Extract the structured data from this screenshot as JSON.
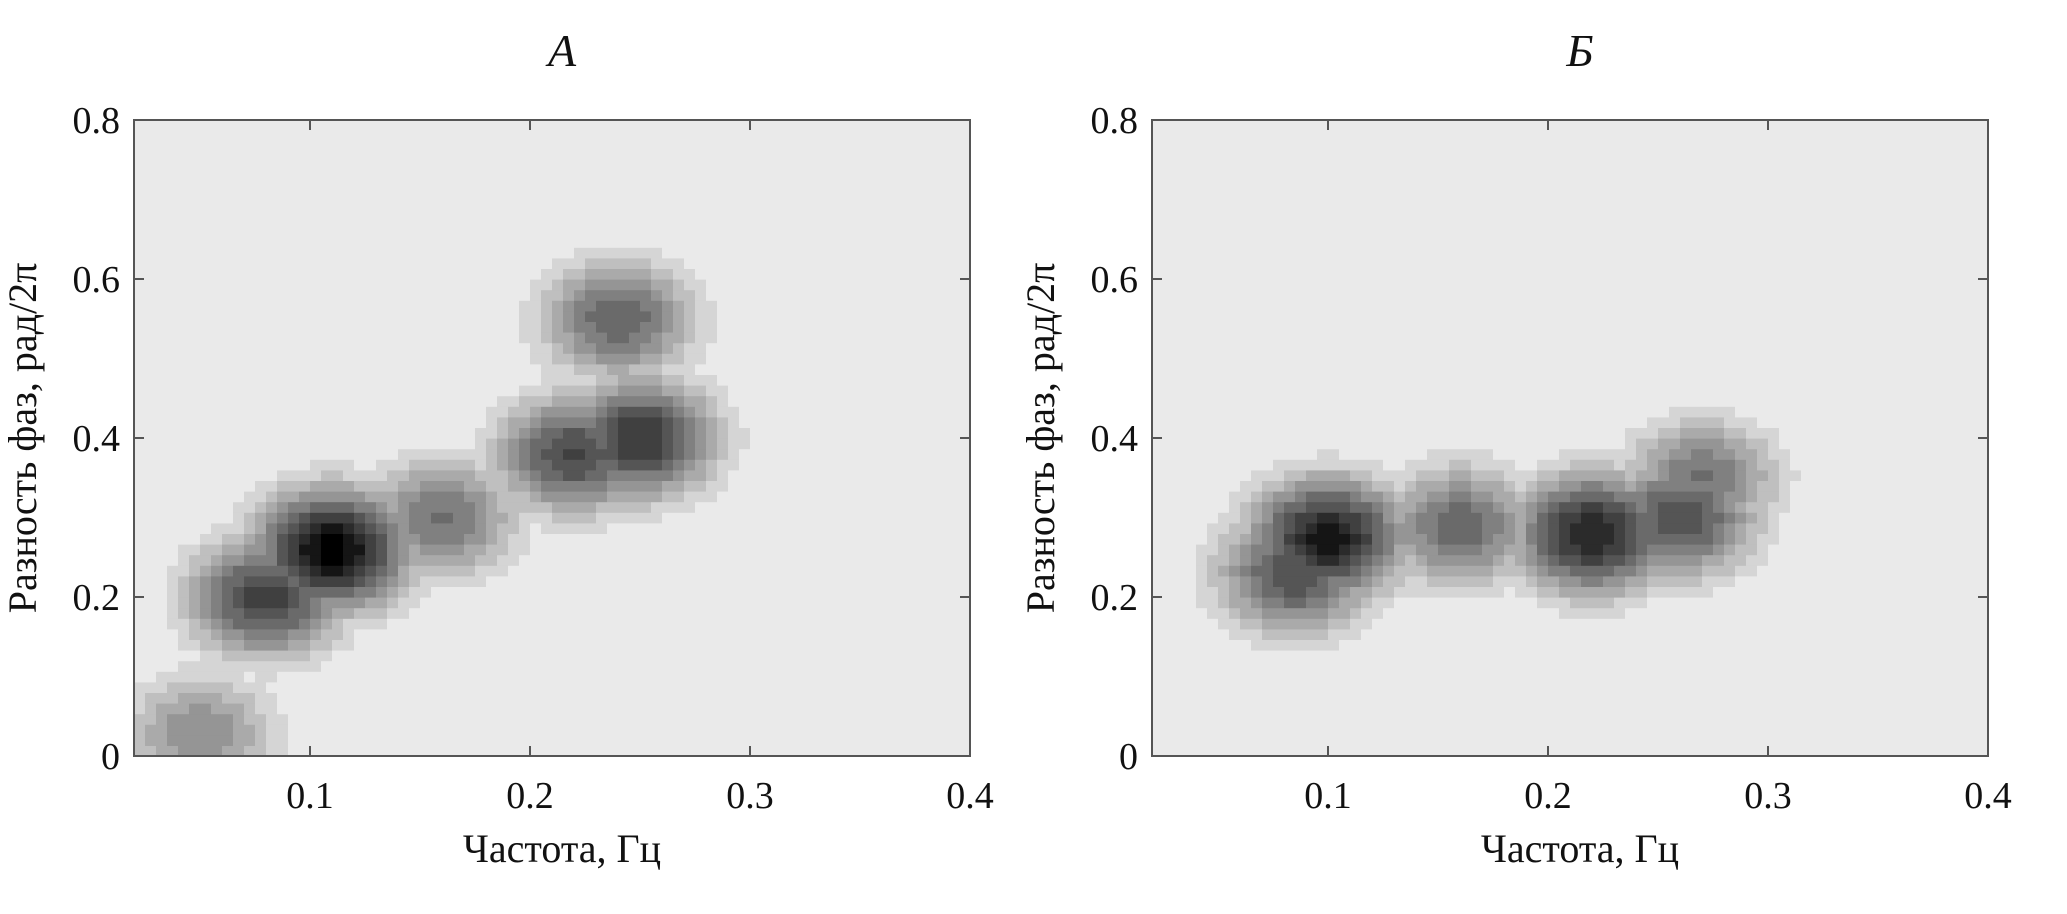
{
  "chart_data": [
    {
      "type": "heatmap",
      "subtype": "filled contour (grayscale density)",
      "title": "А",
      "xlabel": "Частота, Гц",
      "ylabel": "Разность фаз, рад/2π",
      "xlim": [
        0.02,
        0.4
      ],
      "ylim": [
        0,
        0.8
      ],
      "xticks": [
        0.1,
        0.2,
        0.3,
        0.4
      ],
      "xtick_labels": [
        "0.1",
        "0.2",
        "0.3",
        "0.4"
      ],
      "yticks": [
        0,
        0.2,
        0.4,
        0.6,
        0.8
      ],
      "ytick_labels": [
        "0",
        "0.2",
        "0.4",
        "0.6",
        "0.8"
      ],
      "grid": false,
      "colormap": [
        "#ffffff",
        "#000000"
      ],
      "levels": 12,
      "density_peaks": [
        {
          "x": 0.11,
          "y": 0.26,
          "level": 1.0
        },
        {
          "x": 0.08,
          "y": 0.2,
          "level": 0.75
        },
        {
          "x": 0.25,
          "y": 0.4,
          "level": 0.8
        },
        {
          "x": 0.22,
          "y": 0.38,
          "level": 0.72
        },
        {
          "x": 0.24,
          "y": 0.55,
          "level": 0.62
        },
        {
          "x": 0.16,
          "y": 0.3,
          "level": 0.55
        },
        {
          "x": 0.05,
          "y": 0.03,
          "level": 0.45
        }
      ]
    },
    {
      "type": "heatmap",
      "subtype": "filled contour (grayscale density)",
      "title": "Б",
      "xlabel": "Частота, Гц",
      "ylabel": "Разность фаз, рад/2π",
      "xlim": [
        0.02,
        0.4
      ],
      "ylim": [
        0,
        0.8
      ],
      "xticks": [
        0.1,
        0.2,
        0.3,
        0.4
      ],
      "xtick_labels": [
        "0.1",
        "0.2",
        "0.3",
        "0.4"
      ],
      "yticks": [
        0,
        0.2,
        0.4,
        0.6,
        0.8
      ],
      "ytick_labels": [
        "0",
        "0.2",
        "0.4",
        "0.6",
        "0.8"
      ],
      "grid": false,
      "colormap": [
        "#ffffff",
        "#000000"
      ],
      "levels": 12,
      "density_peaks": [
        {
          "x": 0.1,
          "y": 0.275,
          "level": 0.92
        },
        {
          "x": 0.085,
          "y": 0.23,
          "level": 0.7
        },
        {
          "x": 0.22,
          "y": 0.28,
          "level": 0.88
        },
        {
          "x": 0.26,
          "y": 0.3,
          "level": 0.7
        },
        {
          "x": 0.27,
          "y": 0.35,
          "level": 0.55
        },
        {
          "x": 0.16,
          "y": 0.29,
          "level": 0.6
        }
      ]
    }
  ]
}
